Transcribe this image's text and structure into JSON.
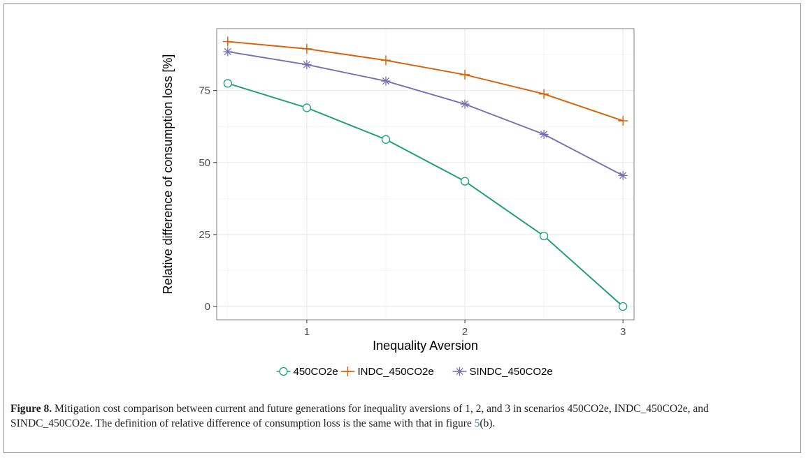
{
  "chart_data": {
    "type": "line",
    "xlabel": "Inequality Aversion",
    "ylabel": "Relative difference of consumption loss [%]",
    "x": [
      0.5,
      1,
      1.5,
      2,
      2.5,
      3
    ],
    "xticks": [
      1,
      2,
      3
    ],
    "yticks": [
      0,
      25,
      50,
      75
    ],
    "xlim": [
      0.43,
      3.07
    ],
    "ylim": [
      -4.6,
      96.5
    ],
    "grid": true,
    "legend_position": "bottom",
    "series": [
      {
        "name": "450CO2e",
        "marker": "circle",
        "color": "#1b9e77",
        "values": [
          77.5,
          69,
          58,
          43.5,
          24.5,
          0
        ]
      },
      {
        "name": "INDC_450CO2e",
        "marker": "plus",
        "color": "#d95f02",
        "values": [
          92,
          89.5,
          85.5,
          80.5,
          73.8,
          64.5
        ]
      },
      {
        "name": "SINDC_450CO2e",
        "marker": "asterisk",
        "color": "#7570b3",
        "values": [
          88.5,
          84,
          78.3,
          70.3,
          59.8,
          45.5
        ]
      }
    ]
  },
  "caption": {
    "label": "Figure 8.",
    "text": " Mitigation cost comparison between current and future generations for inequality aversions of 1, 2, and 3 in scenarios 450CO2e, INDC_450CO2e, and SINDC_450CO2e. The definition of relative difference of consumption loss is the same with that in figure ",
    "link": "5",
    "tail": "(b)."
  }
}
